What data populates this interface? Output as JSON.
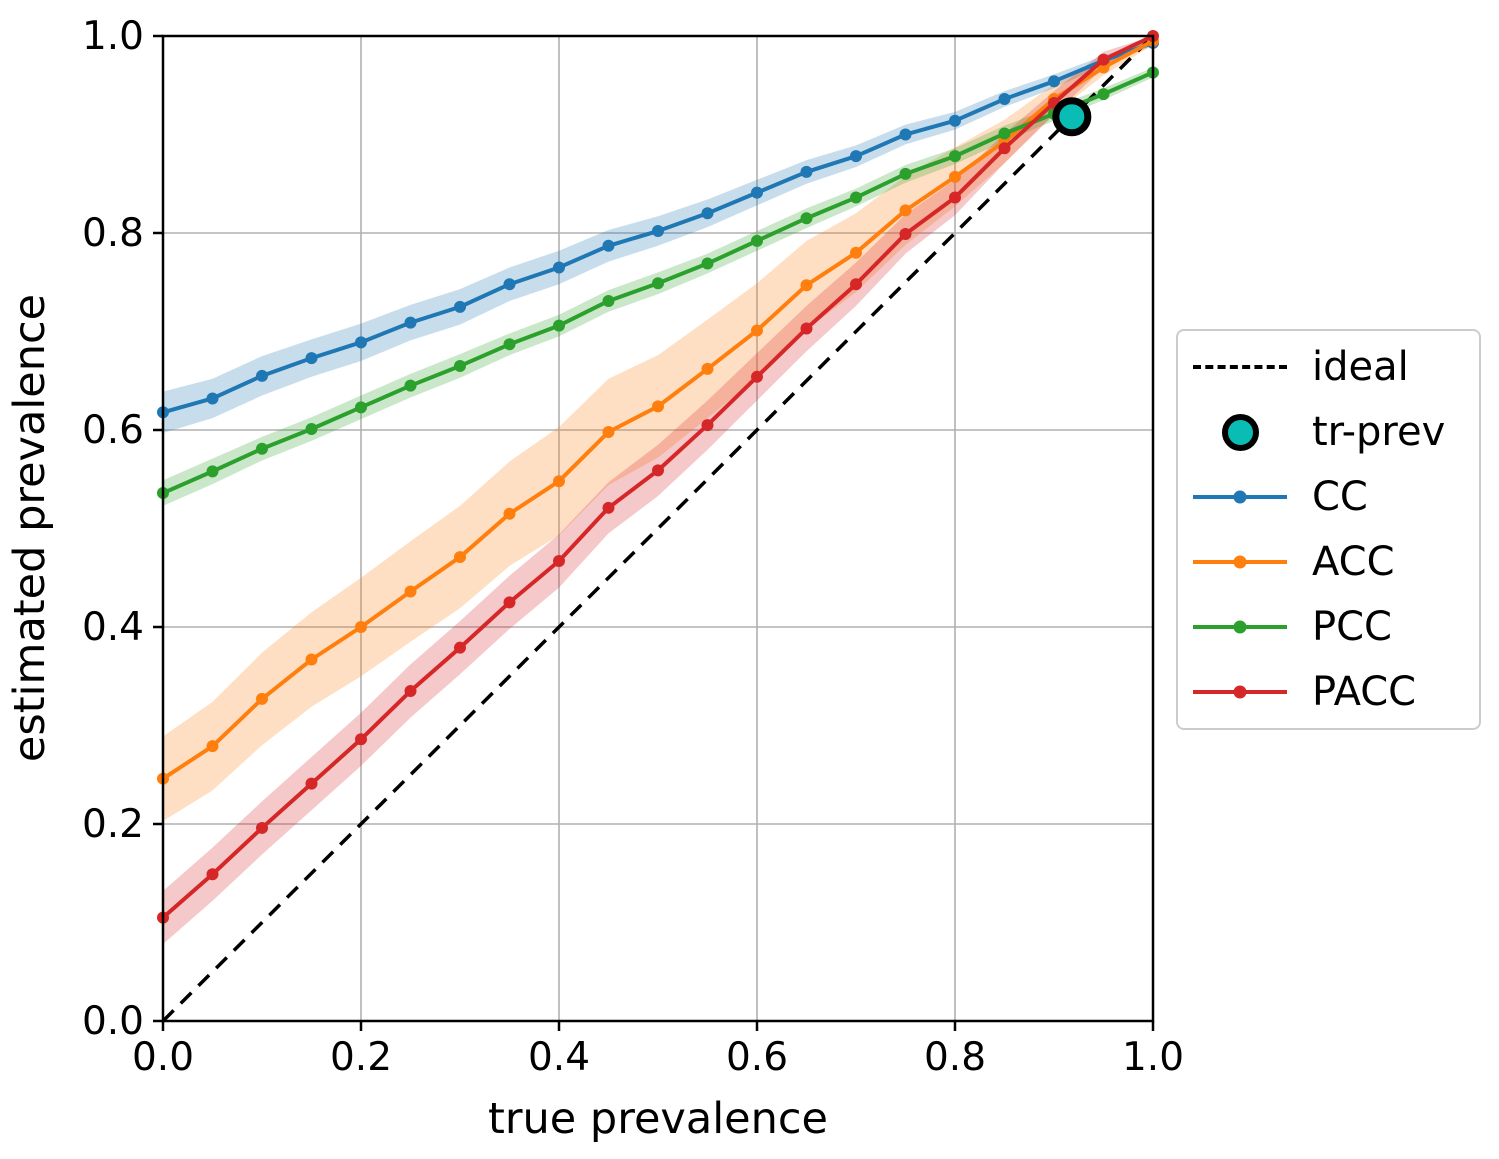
{
  "figure": {
    "background": "#ffffff"
  },
  "axes": {
    "xlabel": "true prevalence",
    "ylabel": "estimated prevalence",
    "xtick_labels": [
      "0.0",
      "0.2",
      "0.4",
      "0.6",
      "0.8",
      "1.0"
    ],
    "ytick_labels": [
      "0.0",
      "0.2",
      "0.4",
      "0.6",
      "0.8",
      "1.0"
    ]
  },
  "legend": {
    "items": [
      {
        "label": "ideal",
        "swatch": "dashed-line",
        "color": "#000000"
      },
      {
        "label": "tr-prev",
        "swatch": "circle",
        "color": "#09bcb4",
        "edge": "#000000"
      },
      {
        "label": "CC",
        "swatch": "line-dot",
        "color": "#1f77b4"
      },
      {
        "label": "ACC",
        "swatch": "line-dot",
        "color": "#ff7f0e"
      },
      {
        "label": "PCC",
        "swatch": "line-dot",
        "color": "#2ca02c"
      },
      {
        "label": "PACC",
        "swatch": "line-dot",
        "color": "#d62728"
      }
    ]
  },
  "chart_data": {
    "type": "line",
    "title": "",
    "xlabel": "true prevalence",
    "ylabel": "estimated prevalence",
    "xlim": [
      0,
      1
    ],
    "ylim": [
      0,
      1
    ],
    "xticks": [
      0,
      0.2,
      0.4,
      0.6,
      0.8,
      1.0
    ],
    "yticks": [
      0,
      0.2,
      0.4,
      0.6,
      0.8,
      1.0
    ],
    "grid": true,
    "grid_color": "#b0b0b0",
    "legend_position": "center-right-outside",
    "band_opacity": 0.25,
    "x": [
      0.0,
      0.05,
      0.1,
      0.15,
      0.2,
      0.25,
      0.3,
      0.35,
      0.4,
      0.45,
      0.5,
      0.55,
      0.6,
      0.65,
      0.7,
      0.75,
      0.8,
      0.85,
      0.9,
      0.95,
      1.0
    ],
    "series": [
      {
        "name": "CC",
        "color": "#1f77b4",
        "values": [
          0.618,
          0.632,
          0.655,
          0.673,
          0.689,
          0.709,
          0.725,
          0.748,
          0.765,
          0.787,
          0.802,
          0.82,
          0.841,
          0.862,
          0.878,
          0.9,
          0.914,
          0.936,
          0.954,
          0.975,
          0.993
        ],
        "band": [
          0.021,
          0.02,
          0.02,
          0.019,
          0.019,
          0.018,
          0.018,
          0.017,
          0.017,
          0.016,
          0.015,
          0.014,
          0.013,
          0.012,
          0.011,
          0.01,
          0.009,
          0.008,
          0.007,
          0.005,
          0.003
        ]
      },
      {
        "name": "ACC",
        "color": "#ff7f0e",
        "values": [
          0.246,
          0.279,
          0.327,
          0.367,
          0.4,
          0.436,
          0.471,
          0.515,
          0.548,
          0.598,
          0.624,
          0.662,
          0.701,
          0.747,
          0.78,
          0.823,
          0.857,
          0.893,
          0.936,
          0.968,
          0.995
        ],
        "band": [
          0.043,
          0.045,
          0.047,
          0.048,
          0.05,
          0.051,
          0.052,
          0.053,
          0.055,
          0.054,
          0.052,
          0.05,
          0.048,
          0.045,
          0.04,
          0.035,
          0.03,
          0.022,
          0.015,
          0.008,
          0.004
        ]
      },
      {
        "name": "PCC",
        "color": "#2ca02c",
        "values": [
          0.536,
          0.558,
          0.581,
          0.601,
          0.623,
          0.645,
          0.665,
          0.687,
          0.706,
          0.731,
          0.749,
          0.769,
          0.792,
          0.815,
          0.836,
          0.86,
          0.878,
          0.901,
          0.921,
          0.941,
          0.963
        ],
        "band": [
          0.013,
          0.013,
          0.012,
          0.012,
          0.012,
          0.012,
          0.012,
          0.011,
          0.011,
          0.011,
          0.011,
          0.01,
          0.01,
          0.01,
          0.009,
          0.009,
          0.008,
          0.008,
          0.007,
          0.006,
          0.005
        ]
      },
      {
        "name": "PACC",
        "color": "#d62728",
        "values": [
          0.105,
          0.149,
          0.196,
          0.241,
          0.286,
          0.335,
          0.379,
          0.425,
          0.467,
          0.521,
          0.559,
          0.605,
          0.654,
          0.703,
          0.748,
          0.799,
          0.836,
          0.886,
          0.932,
          0.976,
          1.0
        ],
        "band": [
          0.027,
          0.027,
          0.027,
          0.027,
          0.027,
          0.027,
          0.027,
          0.027,
          0.027,
          0.026,
          0.026,
          0.025,
          0.024,
          0.023,
          0.022,
          0.02,
          0.018,
          0.015,
          0.012,
          0.008,
          0.004
        ]
      }
    ],
    "reference_line": {
      "name": "ideal",
      "style": "dashed",
      "color": "#000000",
      "from": [
        0,
        0
      ],
      "to": [
        1,
        1
      ]
    },
    "annotations": [
      {
        "name": "tr-prev",
        "x": 0.918,
        "y": 0.918,
        "color": "#09bcb4",
        "edge": "#000000"
      }
    ]
  }
}
